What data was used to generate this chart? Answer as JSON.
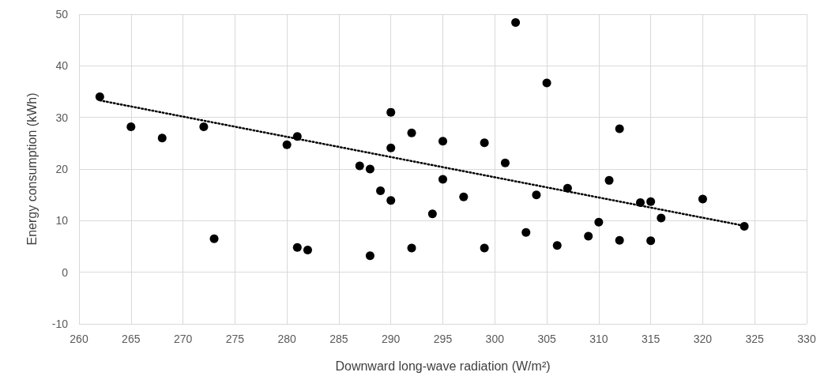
{
  "chart_data": {
    "type": "scatter",
    "xlabel": "Downward long-wave radiation (W/m²)",
    "ylabel": "Energy consumption (kWh)",
    "xlim": [
      260,
      330
    ],
    "xticks": [
      260,
      265,
      270,
      275,
      280,
      285,
      290,
      295,
      300,
      305,
      310,
      315,
      320,
      325,
      330
    ],
    "ylim": [
      -10,
      50
    ],
    "yticks": [
      -10,
      0,
      10,
      20,
      30,
      40,
      50
    ],
    "grid": true,
    "marker": "circle",
    "series": [
      {
        "color": "#000000",
        "x": [
          262,
          265,
          268,
          272,
          273,
          280,
          281,
          281,
          282,
          287,
          288,
          288,
          289,
          290,
          290,
          290,
          292,
          292,
          294,
          295,
          295,
          297,
          299,
          299,
          301,
          302,
          303,
          304,
          305,
          306,
          307,
          309,
          310,
          311,
          312,
          312,
          314,
          315,
          315,
          316,
          320,
          324
        ],
        "values": [
          34,
          28.2,
          26,
          28.2,
          6.5,
          24.7,
          26.3,
          4.8,
          4.3,
          20.6,
          20,
          3.2,
          15.8,
          31,
          24.1,
          13.9,
          27,
          4.7,
          11.3,
          25.4,
          18,
          14.6,
          25.1,
          4.7,
          21.2,
          48.4,
          7.7,
          15,
          36.7,
          5.2,
          16.3,
          7,
          9.7,
          17.8,
          27.8,
          6.2,
          13.5,
          13.7,
          6.1,
          10.5,
          14.2,
          8.9
        ]
      },
      {
        "type": "line",
        "color": "#000000",
        "line_style": "dotted",
        "marker": "none",
        "x": [
          262,
          324
        ],
        "values": [
          33.3,
          9
        ]
      }
    ]
  }
}
